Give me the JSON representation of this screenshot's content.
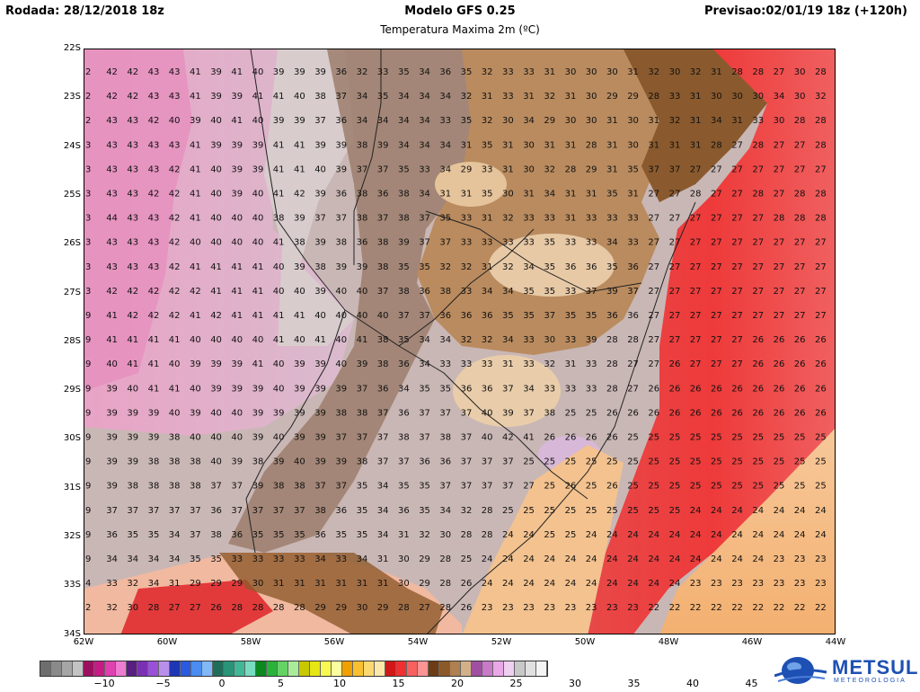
{
  "header": {
    "run": "Rodada: 28/12/2018 18z",
    "model": "Modelo GFS 0.25",
    "forecast": "Previsao:02/01/19 18z (+120h)",
    "variable": "Temperatura Maxima 2m (ºC)"
  },
  "lat_labels": [
    "22S",
    "23S",
    "24S",
    "25S",
    "26S",
    "27S",
    "28S",
    "29S",
    "30S",
    "31S",
    "32S",
    "33S",
    "34S"
  ],
  "lon_labels": [
    "62W",
    "60W",
    "58W",
    "56W",
    "54W",
    "52W",
    "50W",
    "48W",
    "46W",
    "44W"
  ],
  "colorbar": {
    "colors": [
      "#6e6e6e",
      "#8a8a8a",
      "#a6a6a6",
      "#c3c3c3",
      "#9c1060",
      "#c61b85",
      "#e040b0",
      "#ee7cd0",
      "#5a1e82",
      "#7a30b4",
      "#9a50d8",
      "#b890ec",
      "#1e36b4",
      "#2a5ae0",
      "#4a8cf0",
      "#80b8f8",
      "#1e6e5a",
      "#2a9478",
      "#40b898",
      "#78dcc0",
      "#0a8a1e",
      "#28b43a",
      "#64d264",
      "#a8ec9a",
      "#c8c800",
      "#e6e614",
      "#f8f850",
      "#fcfca0",
      "#f0a000",
      "#f8c030",
      "#fcd870",
      "#fce8a8",
      "#d01818",
      "#f03030",
      "#f86060",
      "#fc9494",
      "#6e3c14",
      "#8c5a28",
      "#b08050",
      "#d4b088",
      "#a050a0",
      "#c87ac8",
      "#e8a8e8",
      "#f0d0f0",
      "#c8c8c8",
      "#e0e0e0",
      "#f4f4f4"
    ],
    "ticks": [
      "−10",
      "−5",
      "0",
      "5",
      "10",
      "15",
      "20",
      "25",
      "30",
      "35",
      "40",
      "45"
    ]
  },
  "map_values": [
    [
      "2",
      "42",
      "42",
      "43",
      "43",
      "41",
      "39",
      "41",
      "40",
      "39",
      "39",
      "39",
      "36",
      "32",
      "33",
      "35",
      "34",
      "36",
      "35",
      "32",
      "33",
      "33",
      "31",
      "30",
      "30",
      "30",
      "31",
      "32",
      "30",
      "32",
      "31",
      "28",
      "28",
      "27",
      "30",
      "28"
    ],
    [
      "2",
      "42",
      "42",
      "43",
      "43",
      "41",
      "39",
      "39",
      "41",
      "41",
      "40",
      "38",
      "37",
      "34",
      "35",
      "34",
      "34",
      "34",
      "32",
      "31",
      "33",
      "31",
      "32",
      "31",
      "30",
      "29",
      "29",
      "28",
      "33",
      "31",
      "30",
      "30",
      "30",
      "34",
      "30",
      "32"
    ],
    [
      "2",
      "43",
      "43",
      "42",
      "40",
      "39",
      "40",
      "41",
      "40",
      "39",
      "39",
      "37",
      "36",
      "34",
      "34",
      "34",
      "34",
      "33",
      "35",
      "32",
      "30",
      "34",
      "29",
      "30",
      "30",
      "31",
      "30",
      "31",
      "32",
      "31",
      "34",
      "31",
      "33",
      "30",
      "28",
      "28"
    ],
    [
      "3",
      "43",
      "43",
      "43",
      "43",
      "41",
      "39",
      "39",
      "39",
      "41",
      "41",
      "39",
      "39",
      "38",
      "39",
      "34",
      "34",
      "34",
      "31",
      "35",
      "31",
      "30",
      "31",
      "31",
      "28",
      "31",
      "30",
      "31",
      "31",
      "31",
      "28",
      "27",
      "28",
      "27",
      "27",
      "28"
    ],
    [
      "3",
      "43",
      "43",
      "43",
      "42",
      "41",
      "40",
      "39",
      "39",
      "41",
      "41",
      "40",
      "39",
      "37",
      "37",
      "35",
      "33",
      "34",
      "29",
      "33",
      "31",
      "30",
      "32",
      "28",
      "29",
      "31",
      "35",
      "37",
      "37",
      "27",
      "27",
      "27",
      "27",
      "27",
      "27",
      "27"
    ],
    [
      "3",
      "43",
      "43",
      "42",
      "42",
      "41",
      "40",
      "39",
      "40",
      "41",
      "42",
      "39",
      "36",
      "38",
      "36",
      "38",
      "34",
      "31",
      "31",
      "35",
      "30",
      "31",
      "34",
      "31",
      "31",
      "35",
      "31",
      "27",
      "27",
      "28",
      "27",
      "27",
      "28",
      "27",
      "28",
      "28"
    ],
    [
      "3",
      "44",
      "43",
      "43",
      "42",
      "41",
      "40",
      "40",
      "40",
      "38",
      "39",
      "37",
      "37",
      "38",
      "37",
      "38",
      "37",
      "35",
      "33",
      "31",
      "32",
      "33",
      "33",
      "31",
      "33",
      "33",
      "33",
      "27",
      "27",
      "27",
      "27",
      "27",
      "27",
      "28",
      "28",
      "28"
    ],
    [
      "3",
      "43",
      "43",
      "43",
      "42",
      "40",
      "40",
      "40",
      "40",
      "41",
      "38",
      "39",
      "38",
      "36",
      "38",
      "39",
      "37",
      "37",
      "33",
      "33",
      "33",
      "33",
      "35",
      "33",
      "33",
      "34",
      "33",
      "27",
      "27",
      "27",
      "27",
      "27",
      "27",
      "27",
      "27",
      "27"
    ],
    [
      "3",
      "43",
      "43",
      "43",
      "42",
      "41",
      "41",
      "41",
      "41",
      "40",
      "39",
      "38",
      "39",
      "39",
      "38",
      "35",
      "35",
      "32",
      "32",
      "31",
      "32",
      "34",
      "35",
      "36",
      "36",
      "35",
      "36",
      "27",
      "27",
      "27",
      "27",
      "27",
      "27",
      "27",
      "27",
      "27"
    ],
    [
      "3",
      "42",
      "42",
      "42",
      "42",
      "42",
      "41",
      "41",
      "41",
      "40",
      "40",
      "39",
      "40",
      "40",
      "37",
      "38",
      "36",
      "38",
      "33",
      "34",
      "34",
      "35",
      "35",
      "33",
      "37",
      "39",
      "37",
      "27",
      "27",
      "27",
      "27",
      "27",
      "27",
      "27",
      "27",
      "27"
    ],
    [
      "9",
      "41",
      "42",
      "42",
      "42",
      "41",
      "42",
      "41",
      "41",
      "41",
      "41",
      "40",
      "40",
      "40",
      "40",
      "37",
      "37",
      "36",
      "36",
      "36",
      "35",
      "35",
      "37",
      "35",
      "35",
      "36",
      "36",
      "27",
      "27",
      "27",
      "27",
      "27",
      "27",
      "27",
      "27",
      "27"
    ],
    [
      "9",
      "41",
      "41",
      "41",
      "41",
      "40",
      "40",
      "40",
      "40",
      "41",
      "40",
      "41",
      "40",
      "41",
      "38",
      "35",
      "34",
      "34",
      "32",
      "32",
      "34",
      "33",
      "30",
      "33",
      "39",
      "28",
      "28",
      "27",
      "27",
      "27",
      "27",
      "27",
      "26",
      "26",
      "26",
      "26"
    ],
    [
      "9",
      "40",
      "41",
      "41",
      "40",
      "39",
      "39",
      "39",
      "41",
      "40",
      "39",
      "39",
      "40",
      "39",
      "38",
      "36",
      "34",
      "33",
      "33",
      "33",
      "31",
      "33",
      "32",
      "31",
      "33",
      "28",
      "27",
      "27",
      "26",
      "27",
      "27",
      "27",
      "26",
      "26",
      "26",
      "26"
    ],
    [
      "9",
      "39",
      "40",
      "41",
      "41",
      "40",
      "39",
      "39",
      "39",
      "40",
      "39",
      "39",
      "39",
      "37",
      "36",
      "34",
      "35",
      "35",
      "36",
      "36",
      "37",
      "34",
      "33",
      "33",
      "33",
      "28",
      "27",
      "26",
      "26",
      "26",
      "26",
      "26",
      "26",
      "26",
      "26",
      "26"
    ],
    [
      "9",
      "39",
      "39",
      "39",
      "40",
      "39",
      "40",
      "40",
      "39",
      "39",
      "39",
      "39",
      "38",
      "38",
      "37",
      "36",
      "37",
      "37",
      "37",
      "40",
      "39",
      "37",
      "38",
      "25",
      "25",
      "26",
      "26",
      "26",
      "26",
      "26",
      "26",
      "26",
      "26",
      "26",
      "26",
      "26"
    ],
    [
      "9",
      "39",
      "39",
      "39",
      "38",
      "40",
      "40",
      "40",
      "39",
      "40",
      "39",
      "39",
      "37",
      "37",
      "37",
      "38",
      "37",
      "38",
      "37",
      "40",
      "42",
      "41",
      "26",
      "26",
      "26",
      "26",
      "25",
      "25",
      "25",
      "25",
      "25",
      "25",
      "25",
      "25",
      "25",
      "25"
    ],
    [
      "9",
      "39",
      "39",
      "38",
      "38",
      "38",
      "40",
      "39",
      "38",
      "39",
      "40",
      "39",
      "39",
      "38",
      "37",
      "37",
      "36",
      "36",
      "37",
      "37",
      "37",
      "25",
      "25",
      "25",
      "25",
      "25",
      "25",
      "25",
      "25",
      "25",
      "25",
      "25",
      "25",
      "25",
      "25",
      "25"
    ],
    [
      "9",
      "39",
      "38",
      "38",
      "38",
      "38",
      "37",
      "37",
      "39",
      "38",
      "38",
      "37",
      "37",
      "35",
      "34",
      "35",
      "35",
      "37",
      "37",
      "37",
      "37",
      "27",
      "25",
      "26",
      "25",
      "26",
      "25",
      "25",
      "25",
      "25",
      "25",
      "25",
      "25",
      "25",
      "25",
      "25"
    ],
    [
      "9",
      "37",
      "37",
      "37",
      "37",
      "37",
      "36",
      "37",
      "37",
      "37",
      "37",
      "38",
      "36",
      "35",
      "34",
      "36",
      "35",
      "34",
      "32",
      "28",
      "25",
      "25",
      "25",
      "25",
      "25",
      "25",
      "25",
      "25",
      "25",
      "24",
      "24",
      "24",
      "24",
      "24",
      "24",
      "24"
    ],
    [
      "9",
      "36",
      "35",
      "35",
      "34",
      "37",
      "38",
      "36",
      "35",
      "35",
      "35",
      "36",
      "35",
      "35",
      "34",
      "31",
      "32",
      "30",
      "28",
      "28",
      "24",
      "24",
      "25",
      "25",
      "24",
      "24",
      "24",
      "24",
      "24",
      "24",
      "24",
      "24",
      "24",
      "24",
      "24",
      "24"
    ],
    [
      "9",
      "34",
      "34",
      "34",
      "34",
      "35",
      "35",
      "33",
      "33",
      "33",
      "33",
      "34",
      "33",
      "34",
      "31",
      "30",
      "29",
      "28",
      "25",
      "24",
      "24",
      "24",
      "24",
      "24",
      "24",
      "24",
      "24",
      "24",
      "24",
      "24",
      "24",
      "24",
      "24",
      "23",
      "23",
      "23"
    ],
    [
      "4",
      "33",
      "32",
      "34",
      "31",
      "29",
      "29",
      "29",
      "30",
      "31",
      "31",
      "31",
      "31",
      "31",
      "31",
      "30",
      "29",
      "28",
      "26",
      "24",
      "24",
      "24",
      "24",
      "24",
      "24",
      "24",
      "24",
      "24",
      "24",
      "23",
      "23",
      "23",
      "23",
      "23",
      "23",
      "23"
    ],
    [
      "2",
      "32",
      "30",
      "28",
      "27",
      "27",
      "26",
      "28",
      "28",
      "28",
      "28",
      "29",
      "29",
      "30",
      "29",
      "28",
      "27",
      "28",
      "26",
      "23",
      "23",
      "23",
      "23",
      "23",
      "23",
      "23",
      "23",
      "22",
      "22",
      "22",
      "22",
      "22",
      "22",
      "22",
      "22",
      "22"
    ]
  ],
  "logo": {
    "name": "METSUL",
    "tagline": "METEOROLOGIA"
  }
}
